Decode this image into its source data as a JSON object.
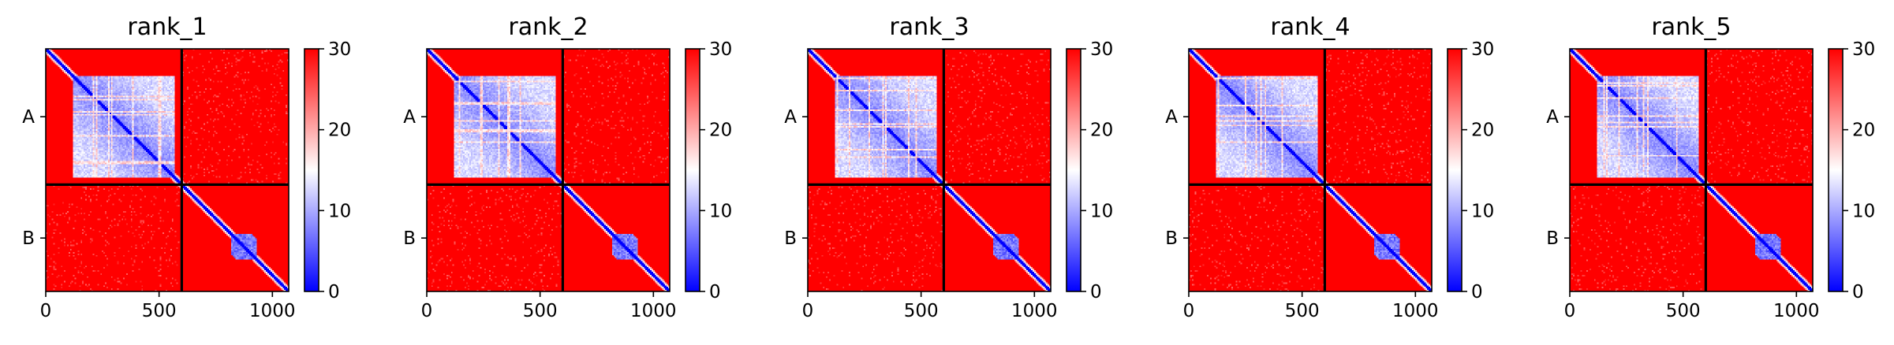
{
  "chart_data": {
    "type": "heatmap",
    "colormap": [
      "#0000ff",
      "#ffffff",
      "#ff0000"
    ],
    "color_range": [
      0,
      30
    ],
    "colorbar_ticks": [
      0,
      10,
      20,
      30
    ],
    "x_range": [
      0,
      1072
    ],
    "x_ticks": [
      0,
      500,
      1000
    ],
    "chain_boundary": 600,
    "chains": [
      "A",
      "B"
    ],
    "panels": [
      {
        "title": "rank_1"
      },
      {
        "title": "rank_2"
      },
      {
        "title": "rank_3"
      },
      {
        "title": "rank_4"
      },
      {
        "title": "rank_5"
      }
    ]
  }
}
